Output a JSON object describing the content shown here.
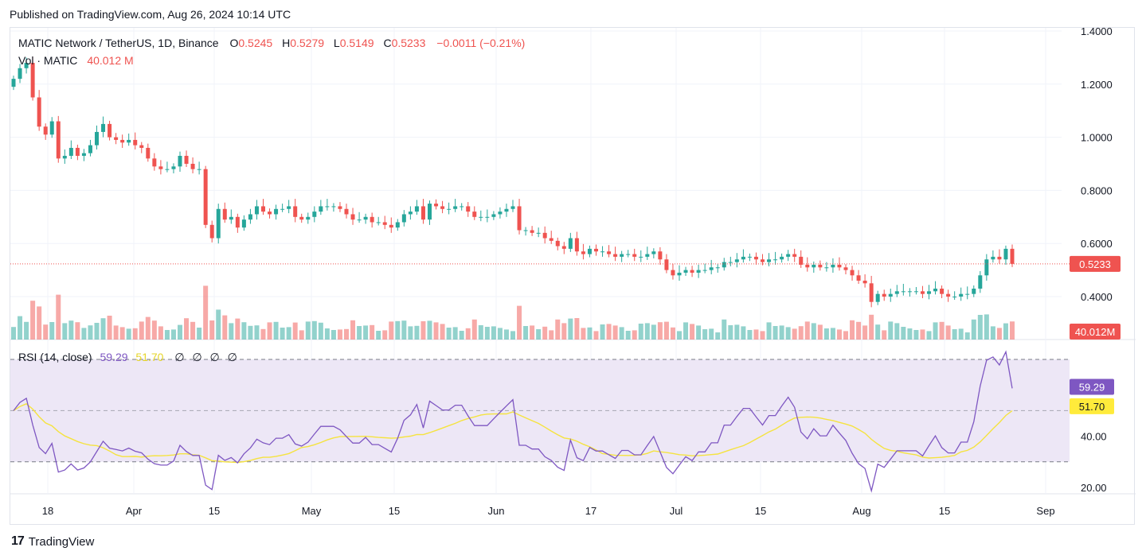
{
  "published": "Published on TradingView.com, Aug 26, 2024 10:14 UTC",
  "legend": {
    "symbol": "MATIC Network / TetherUS, 1D, Binance",
    "open_label": "O",
    "open": "0.5245",
    "high_label": "H",
    "high": "0.5279",
    "low_label": "L",
    "low": "0.5149",
    "close_label": "C",
    "close": "0.5233",
    "change": "−0.0011 (−0.21%)",
    "volume_label": "Vol · MATIC",
    "volume": "40.012 M"
  },
  "rsi_legend": {
    "label": "RSI (14, close)",
    "rsi": "59.29",
    "ma": "51.70",
    "empties": [
      "∅",
      "∅",
      "∅",
      "∅"
    ]
  },
  "price_axis": [
    "1.4000",
    "1.2000",
    "1.0000",
    "0.8000",
    "0.6000",
    "0.4000"
  ],
  "rsi_axis": [
    "40.00",
    "20.00"
  ],
  "last_price_label": "0.5233",
  "last_volume_label": "40.012M",
  "rsi_label": "59.29",
  "rsi_ma_label": "51.70",
  "time_axis": [
    "18",
    "Apr",
    "15",
    "May",
    "15",
    "Jun",
    "17",
    "Jul",
    "15",
    "Aug",
    "15",
    "Sep"
  ],
  "colors": {
    "up": "#26a69a",
    "down": "#ef5350",
    "rsi": "#7e57c2",
    "rsi_ma": "#f5e33f",
    "rsi_band": "#ede7f6"
  },
  "footer": {
    "brand": "TradingView"
  },
  "chart_data": [
    {
      "type": "candlestick",
      "title": "MATIC Network / TetherUS, 1D, Binance",
      "x_start": "2024-03-07",
      "closes": [
        1.22,
        1.26,
        1.28,
        1.15,
        1.04,
        1.01,
        1.06,
        0.92,
        0.93,
        0.96,
        0.93,
        0.94,
        0.97,
        1.02,
        1.05,
        1.0,
        0.99,
        0.98,
        0.99,
        0.97,
        0.96,
        0.92,
        0.89,
        0.88,
        0.88,
        0.89,
        0.93,
        0.9,
        0.88,
        0.88,
        0.67,
        0.62,
        0.73,
        0.69,
        0.7,
        0.66,
        0.69,
        0.71,
        0.74,
        0.72,
        0.71,
        0.73,
        0.73,
        0.74,
        0.7,
        0.69,
        0.7,
        0.72,
        0.74,
        0.74,
        0.74,
        0.73,
        0.71,
        0.69,
        0.69,
        0.7,
        0.68,
        0.68,
        0.67,
        0.66,
        0.68,
        0.71,
        0.72,
        0.74,
        0.69,
        0.75,
        0.74,
        0.73,
        0.73,
        0.74,
        0.74,
        0.72,
        0.7,
        0.7,
        0.7,
        0.71,
        0.72,
        0.73,
        0.74,
        0.65,
        0.65,
        0.64,
        0.64,
        0.62,
        0.61,
        0.59,
        0.58,
        0.62,
        0.57,
        0.56,
        0.58,
        0.57,
        0.57,
        0.56,
        0.55,
        0.56,
        0.56,
        0.55,
        0.55,
        0.56,
        0.57,
        0.54,
        0.5,
        0.48,
        0.49,
        0.5,
        0.49,
        0.5,
        0.5,
        0.51,
        0.51,
        0.53,
        0.53,
        0.54,
        0.55,
        0.55,
        0.54,
        0.53,
        0.54,
        0.54,
        0.55,
        0.56,
        0.55,
        0.52,
        0.51,
        0.52,
        0.51,
        0.51,
        0.52,
        0.51,
        0.5,
        0.48,
        0.46,
        0.45,
        0.38,
        0.41,
        0.4,
        0.41,
        0.42,
        0.42,
        0.42,
        0.42,
        0.41,
        0.42,
        0.43,
        0.41,
        0.4,
        0.4,
        0.41,
        0.41,
        0.43,
        0.48,
        0.54,
        0.55,
        0.54,
        0.58,
        0.5233
      ],
      "volume_last": "40.012M",
      "rsi": {
        "period": 14,
        "last": 59.29,
        "ma_last": 51.7,
        "upper_band": 70,
        "lower_band": 30
      },
      "price_range": [
        0.3,
        1.4
      ]
    }
  ]
}
